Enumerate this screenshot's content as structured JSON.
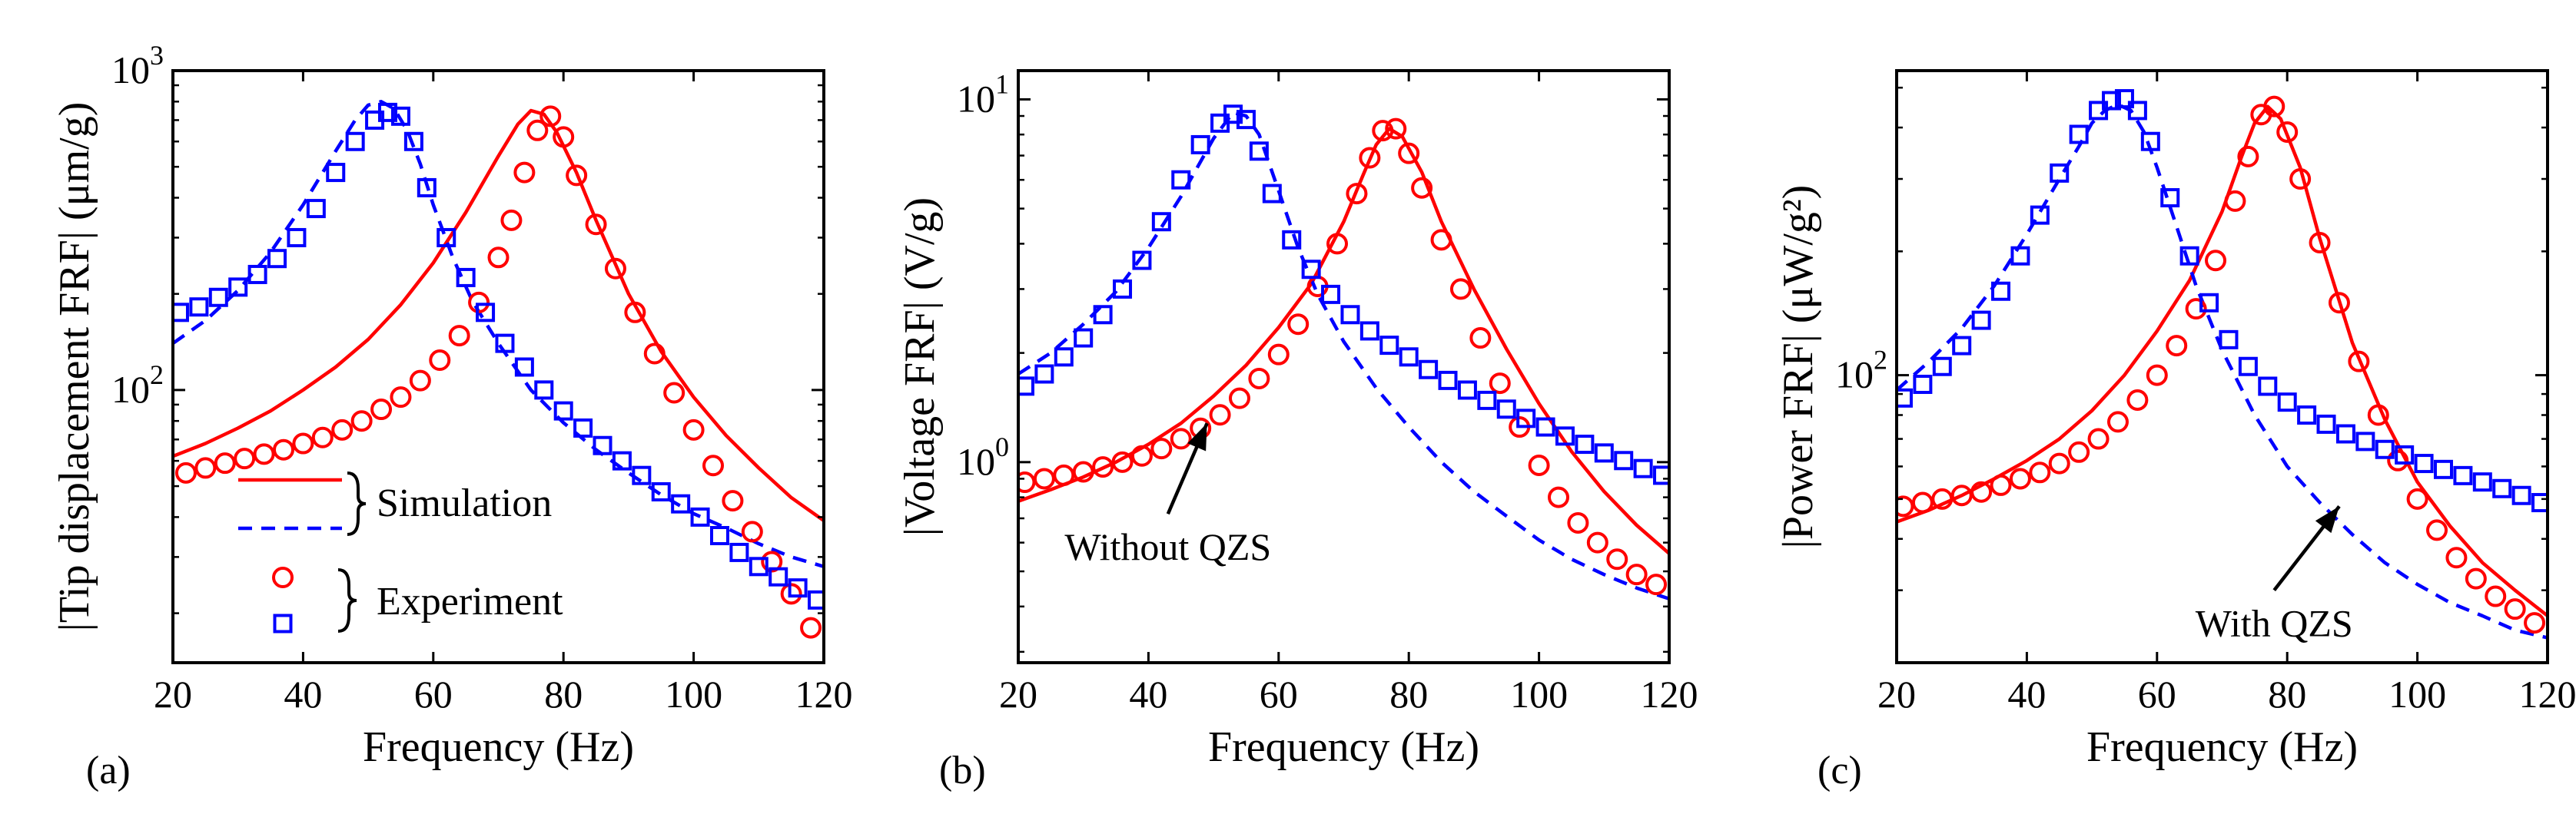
{
  "colors": {
    "red": "#ff0000",
    "blue": "#0000ff",
    "axis": "#000000"
  },
  "legend": {
    "simulation_label": "Simulation",
    "experiment_label": "Experiment"
  },
  "chart_data": [
    {
      "type": "line",
      "panel_label": "(a)",
      "xlabel": "Frequency (Hz)",
      "ylabel": "|Tip displacement FRF|  (μm/g)",
      "yscale": "log",
      "xlim": [
        20,
        120
      ],
      "ylim": [
        14,
        1000
      ],
      "xticks": [
        20,
        40,
        60,
        80,
        100,
        120
      ],
      "yticks": [
        {
          "value": 100,
          "base": "10",
          "exp": "2"
        },
        {
          "value": 1000,
          "base": "10",
          "exp": "3"
        }
      ],
      "series": [
        {
          "style": "solid",
          "color": "red",
          "x": [
            20,
            25,
            30,
            35,
            40,
            45,
            50,
            55,
            60,
            65,
            70,
            73,
            75,
            77,
            79,
            82,
            85,
            90,
            95,
            100,
            105,
            110,
            115,
            120
          ],
          "y": [
            62,
            68,
            76,
            86,
            100,
            118,
            144,
            185,
            250,
            360,
            540,
            680,
            750,
            730,
            640,
            480,
            340,
            200,
            132,
            95,
            72,
            57,
            46,
            39
          ]
        },
        {
          "style": "dashed",
          "color": "blue",
          "x": [
            20,
            25,
            30,
            35,
            40,
            45,
            48,
            50,
            52,
            54,
            56,
            58,
            60,
            63,
            66,
            70,
            75,
            80,
            85,
            90,
            95,
            100,
            105,
            110,
            115,
            120
          ],
          "y": [
            140,
            165,
            205,
            270,
            380,
            560,
            700,
            780,
            800,
            760,
            650,
            510,
            380,
            260,
            190,
            140,
            100,
            79,
            65,
            55,
            47,
            41,
            37,
            33,
            30,
            28
          ]
        },
        {
          "marker": "circle",
          "color": "red",
          "x": [
            22,
            25,
            28,
            31,
            34,
            37,
            40,
            43,
            46,
            49,
            52,
            55,
            58,
            61,
            64,
            67,
            70,
            72,
            74,
            76,
            78,
            80,
            82,
            85,
            88,
            91,
            94,
            97,
            100,
            103,
            106,
            109,
            112,
            115,
            118
          ],
          "y": [
            55,
            57,
            59,
            61,
            63,
            65,
            68,
            71,
            75,
            80,
            87,
            95,
            107,
            124,
            148,
            188,
            260,
            340,
            480,
            650,
            720,
            620,
            470,
            330,
            240,
            175,
            130,
            98,
            75,
            58,
            45,
            36,
            29,
            23,
            18
          ]
        },
        {
          "marker": "square",
          "color": "blue",
          "x": [
            21,
            24,
            27,
            30,
            33,
            36,
            39,
            42,
            45,
            48,
            51,
            53,
            55,
            57,
            59,
            62,
            65,
            68,
            71,
            74,
            77,
            80,
            83,
            86,
            89,
            92,
            95,
            98,
            101,
            104,
            107,
            110,
            113,
            116,
            119
          ],
          "y": [
            175,
            182,
            195,
            210,
            230,
            258,
            300,
            370,
            480,
            600,
            700,
            740,
            720,
            600,
            430,
            300,
            225,
            175,
            140,
            118,
            100,
            86,
            76,
            67,
            60,
            54,
            48,
            44,
            40,
            35,
            31,
            28,
            26,
            24,
            22
          ]
        }
      ]
    },
    {
      "type": "line",
      "panel_label": "(b)",
      "xlabel": "Frequency (Hz)",
      "ylabel": "|Voltage FRF|  (V/g)",
      "yscale": "log",
      "xlim": [
        20,
        120
      ],
      "ylim": [
        0.28,
        12
      ],
      "xticks": [
        20,
        40,
        60,
        80,
        100,
        120
      ],
      "yticks": [
        {
          "value": 1,
          "base": "10",
          "exp": "0"
        },
        {
          "value": 10,
          "base": "10",
          "exp": "1"
        }
      ],
      "annotation": {
        "text": "Without QZS",
        "arrow_from": [
          43,
          0.72
        ],
        "arrow_to": [
          49,
          1.28
        ]
      },
      "series": [
        {
          "style": "solid",
          "color": "red",
          "x": [
            20,
            25,
            30,
            35,
            40,
            45,
            50,
            55,
            60,
            65,
            70,
            73,
            75,
            77,
            79,
            82,
            85,
            90,
            95,
            100,
            105,
            110,
            115,
            120
          ],
          "y": [
            0.78,
            0.84,
            0.91,
            1.0,
            1.12,
            1.28,
            1.52,
            1.85,
            2.35,
            3.1,
            4.6,
            6.2,
            7.5,
            8.3,
            7.9,
            6.3,
            4.6,
            3.0,
            2.05,
            1.45,
            1.07,
            0.83,
            0.67,
            0.56
          ]
        },
        {
          "style": "dashed",
          "color": "blue",
          "x": [
            20,
            25,
            30,
            35,
            40,
            45,
            50,
            53,
            55,
            57,
            60,
            63,
            66,
            70,
            75,
            80,
            85,
            90,
            95,
            100,
            105,
            110,
            115,
            120
          ],
          "y": [
            1.75,
            2.0,
            2.4,
            2.95,
            3.9,
            5.4,
            7.8,
            9.2,
            9.0,
            8.0,
            5.6,
            3.9,
            2.9,
            2.15,
            1.6,
            1.25,
            1.0,
            0.83,
            0.71,
            0.61,
            0.54,
            0.49,
            0.45,
            0.42
          ]
        },
        {
          "marker": "circle",
          "color": "red",
          "x": [
            21,
            24,
            27,
            30,
            33,
            36,
            39,
            42,
            45,
            48,
            51,
            54,
            57,
            60,
            63,
            66,
            69,
            72,
            74,
            76,
            78,
            80,
            82,
            85,
            88,
            91,
            94,
            97,
            100,
            103,
            106,
            109,
            112,
            115,
            118
          ],
          "y": [
            0.88,
            0.9,
            0.92,
            0.94,
            0.97,
            1.0,
            1.04,
            1.09,
            1.16,
            1.24,
            1.35,
            1.5,
            1.7,
            1.98,
            2.4,
            3.05,
            4.0,
            5.5,
            6.9,
            8.2,
            8.3,
            7.1,
            5.7,
            4.1,
            3.0,
            2.2,
            1.65,
            1.25,
            0.98,
            0.8,
            0.68,
            0.6,
            0.54,
            0.49,
            0.46
          ]
        },
        {
          "marker": "square",
          "color": "blue",
          "x": [
            21,
            24,
            27,
            30,
            33,
            36,
            39,
            42,
            45,
            48,
            51,
            53,
            55,
            57,
            59,
            62,
            65,
            68,
            71,
            74,
            77,
            80,
            83,
            86,
            89,
            92,
            95,
            98,
            101,
            104,
            107,
            110,
            113,
            116,
            119
          ],
          "y": [
            1.62,
            1.75,
            1.95,
            2.2,
            2.55,
            3.0,
            3.6,
            4.6,
            6.0,
            7.5,
            8.6,
            9.1,
            8.8,
            7.2,
            5.5,
            4.1,
            3.4,
            2.9,
            2.55,
            2.3,
            2.1,
            1.95,
            1.8,
            1.68,
            1.58,
            1.48,
            1.4,
            1.32,
            1.25,
            1.18,
            1.12,
            1.06,
            1.01,
            0.96,
            0.92
          ]
        }
      ]
    },
    {
      "type": "line",
      "panel_label": "(c)",
      "xlabel": "Frequency (Hz)",
      "ylabel": "|Power FRF|  (μW/g²)",
      "yscale": "log",
      "xlim": [
        20,
        120
      ],
      "ylim": [
        20,
        550
      ],
      "xticks": [
        20,
        40,
        60,
        80,
        100,
        120
      ],
      "yticks": [
        {
          "value": 100,
          "base": "10",
          "exp": "2"
        }
      ],
      "annotation": {
        "text": "With QZS",
        "arrow_from": [
          78,
          30
        ],
        "arrow_to": [
          88,
          48
        ]
      },
      "series": [
        {
          "style": "solid",
          "color": "red",
          "x": [
            20,
            25,
            30,
            35,
            40,
            45,
            50,
            55,
            60,
            65,
            70,
            73,
            75,
            77,
            79,
            82,
            85,
            90,
            95,
            100,
            105,
            110,
            115,
            120
          ],
          "y": [
            44,
            47,
            51,
            56,
            62,
            70,
            82,
            100,
            128,
            170,
            250,
            340,
            410,
            450,
            420,
            320,
            215,
            120,
            78,
            55,
            43,
            35,
            30,
            26
          ]
        },
        {
          "style": "dashed",
          "color": "blue",
          "x": [
            20,
            25,
            30,
            35,
            40,
            45,
            48,
            50,
            52,
            54,
            56,
            58,
            60,
            63,
            66,
            70,
            75,
            80,
            85,
            90,
            95,
            100,
            105,
            110,
            115,
            120
          ],
          "y": [
            92,
            108,
            130,
            165,
            220,
            300,
            360,
            410,
            440,
            455,
            440,
            390,
            320,
            230,
            165,
            115,
            80,
            60,
            49,
            41,
            35,
            31,
            28,
            26,
            24,
            23
          ]
        },
        {
          "marker": "circle",
          "color": "red",
          "x": [
            21,
            24,
            27,
            30,
            33,
            36,
            39,
            42,
            45,
            48,
            51,
            54,
            57,
            60,
            63,
            66,
            69,
            72,
            74,
            76,
            78,
            80,
            82,
            85,
            88,
            91,
            94,
            97,
            100,
            103,
            106,
            109,
            112,
            115,
            118
          ],
          "y": [
            48,
            49,
            50,
            51,
            52,
            54,
            56,
            58,
            61,
            65,
            70,
            77,
            87,
            100,
            118,
            145,
            190,
            265,
            340,
            430,
            450,
            390,
            300,
            210,
            150,
            108,
            80,
            62,
            50,
            42,
            36,
            32,
            29,
            27,
            25
          ]
        },
        {
          "marker": "square",
          "color": "blue",
          "x": [
            21,
            24,
            27,
            30,
            33,
            36,
            39,
            42,
            45,
            48,
            51,
            53,
            55,
            57,
            59,
            62,
            65,
            68,
            71,
            74,
            77,
            80,
            83,
            86,
            89,
            92,
            95,
            98,
            101,
            104,
            107,
            110,
            113,
            116,
            119
          ],
          "y": [
            88,
            95,
            105,
            118,
            136,
            160,
            195,
            245,
            310,
            385,
            440,
            465,
            470,
            440,
            370,
            270,
            195,
            150,
            122,
            105,
            94,
            86,
            80,
            76,
            72,
            69,
            66,
            64,
            61,
            59,
            57,
            55,
            53,
            51,
            49
          ]
        }
      ]
    }
  ]
}
